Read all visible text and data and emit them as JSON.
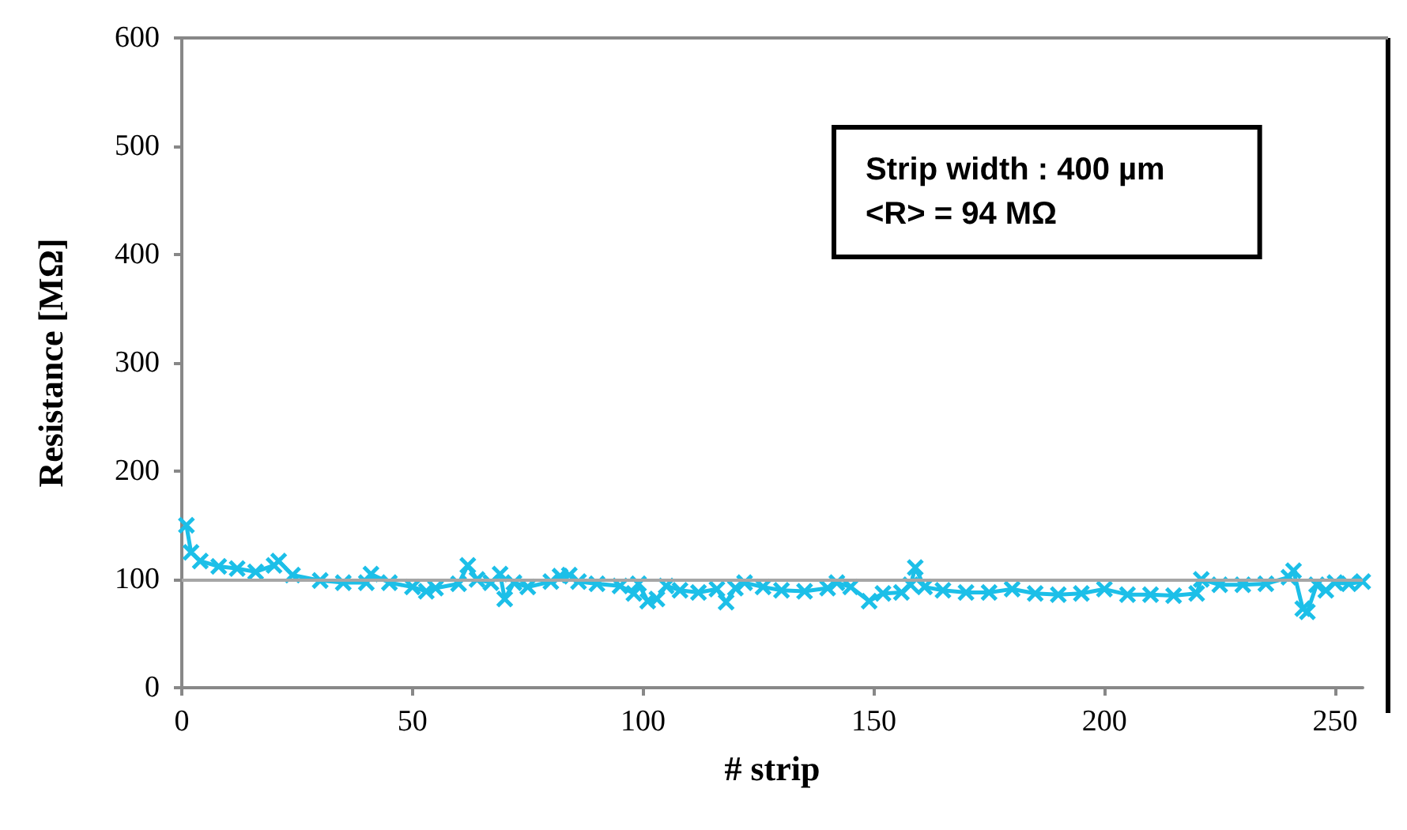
{
  "chart_data": {
    "type": "line",
    "xlabel": "# strip",
    "ylabel": "Resistance [MΩ]",
    "annotations": [
      "Strip width : 400 µm",
      "<R> = 94 MΩ"
    ],
    "xlim": [
      0,
      256
    ],
    "xticks": [
      0,
      50,
      100,
      150,
      200,
      250
    ],
    "ylim": [
      0,
      600
    ],
    "yticks": [
      0,
      100,
      200,
      300,
      400,
      500,
      600
    ],
    "grid": false,
    "marker": "cross",
    "line_style": "solid",
    "ref_lines": [
      {
        "axis": "y",
        "value": 100,
        "color": "#a6a6a6"
      }
    ],
    "series": [
      {
        "color": "#1cbfe8",
        "x": [
          1,
          2,
          4,
          8,
          12,
          16,
          20,
          21,
          24,
          30,
          35,
          40,
          41,
          45,
          50,
          53,
          55,
          60,
          62,
          64,
          67,
          69,
          70,
          72,
          75,
          80,
          82,
          84,
          86,
          90,
          95,
          98,
          99,
          101,
          103,
          105,
          108,
          112,
          116,
          118,
          120,
          122,
          126,
          130,
          135,
          140,
          142,
          145,
          149,
          152,
          156,
          158,
          159,
          161,
          165,
          170,
          175,
          180,
          185,
          190,
          195,
          200,
          205,
          210,
          215,
          220,
          221,
          225,
          230,
          235,
          240,
          241,
          243,
          244,
          246,
          248,
          250,
          253,
          256
        ],
        "values": [
          150,
          125,
          117,
          112,
          110,
          107,
          113,
          117,
          104,
          99,
          97,
          97,
          105,
          97,
          93,
          89,
          92,
          96,
          113,
          100,
          97,
          105,
          82,
          97,
          93,
          98,
          103,
          104,
          98,
          96,
          94,
          87,
          96,
          80,
          82,
          94,
          90,
          88,
          91,
          79,
          92,
          97,
          93,
          90,
          89,
          92,
          97,
          93,
          80,
          87,
          88,
          95,
          111,
          93,
          90,
          88,
          88,
          91,
          87,
          86,
          87,
          91,
          86,
          86,
          85,
          87,
          100,
          95,
          95,
          96,
          102,
          108,
          73,
          70,
          95,
          90,
          97,
          96,
          98
        ]
      }
    ]
  }
}
